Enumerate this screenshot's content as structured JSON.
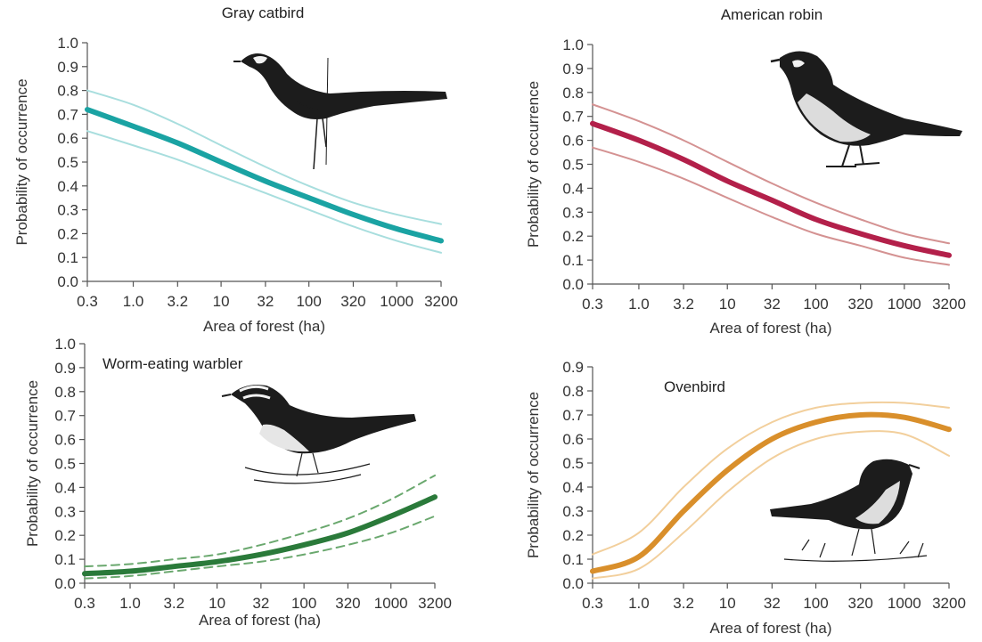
{
  "chart_data": [
    {
      "type": "line",
      "title": "Gray catbird",
      "xlabel": "Area of forest (ha)",
      "ylabel": "Probability of occurrence",
      "x_scale": "log",
      "x_ticks": [
        "0.3",
        "1.0",
        "3.2",
        "10",
        "32",
        "100",
        "320",
        "1000",
        "3200"
      ],
      "y_ticks": [
        "0.0",
        "0.1",
        "0.2",
        "0.3",
        "0.4",
        "0.5",
        "0.6",
        "0.7",
        "0.8",
        "0.9",
        "1.0"
      ],
      "ylim": [
        0,
        1.0
      ],
      "xlim": [
        0.3,
        3200
      ],
      "x": [
        0.3,
        1.0,
        3.2,
        10,
        32,
        100,
        320,
        1000,
        3200
      ],
      "mean_color": "#1aa3a3",
      "band_color": "#a8dede",
      "band_style": "solid",
      "illustration": "gray-catbird-drawing",
      "series": [
        {
          "values": [
            0.72,
            0.65,
            0.58,
            0.5,
            0.42,
            0.35,
            0.28,
            0.22,
            0.17
          ]
        },
        {
          "values": [
            0.8,
            0.74,
            0.66,
            0.57,
            0.48,
            0.4,
            0.33,
            0.28,
            0.24
          ]
        },
        {
          "values": [
            0.63,
            0.57,
            0.51,
            0.44,
            0.37,
            0.3,
            0.23,
            0.17,
            0.12
          ]
        }
      ]
    },
    {
      "type": "line",
      "title": "American robin",
      "xlabel": "Area of forest (ha)",
      "ylabel": "Probability of occurrence",
      "x_scale": "log",
      "x_ticks": [
        "0.3",
        "1.0",
        "3.2",
        "10",
        "32",
        "100",
        "320",
        "1000",
        "3200"
      ],
      "y_ticks": [
        "0.0",
        "0.1",
        "0.2",
        "0.3",
        "0.4",
        "0.5",
        "0.6",
        "0.7",
        "0.8",
        "0.9",
        "1.0"
      ],
      "ylim": [
        0,
        1.0
      ],
      "xlim": [
        0.3,
        3200
      ],
      "x": [
        0.3,
        1.0,
        3.2,
        10,
        32,
        100,
        320,
        1000,
        3200
      ],
      "mean_color": "#b3204a",
      "band_color": "#d49292",
      "band_style": "solid",
      "illustration": "american-robin-drawing",
      "series": [
        {
          "values": [
            0.67,
            0.6,
            0.52,
            0.43,
            0.35,
            0.27,
            0.21,
            0.16,
            0.12
          ]
        },
        {
          "values": [
            0.75,
            0.68,
            0.6,
            0.51,
            0.42,
            0.34,
            0.27,
            0.21,
            0.17
          ]
        },
        {
          "values": [
            0.57,
            0.51,
            0.44,
            0.36,
            0.28,
            0.21,
            0.16,
            0.11,
            0.08
          ]
        }
      ]
    },
    {
      "type": "line",
      "title": "Worm-eating warbler",
      "xlabel": "Area of forest (ha)",
      "ylabel": "Probability of occurrence",
      "x_scale": "log",
      "x_ticks": [
        "0.3",
        "1.0",
        "3.2",
        "10",
        "32",
        "100",
        "320",
        "1000",
        "3200"
      ],
      "y_ticks": [
        "0.0",
        "0.1",
        "0.2",
        "0.3",
        "0.4",
        "0.5",
        "0.6",
        "0.7",
        "0.8",
        "0.9",
        "1.0"
      ],
      "ylim": [
        0,
        1.0
      ],
      "xlim": [
        0.3,
        3200
      ],
      "x": [
        0.3,
        1.0,
        3.2,
        10,
        32,
        100,
        320,
        1000,
        3200
      ],
      "mean_color": "#2a7a3a",
      "band_color": "#6aa86e",
      "band_style": "dashed",
      "illustration": "worm-eating-warbler-drawing",
      "series": [
        {
          "values": [
            0.04,
            0.05,
            0.07,
            0.09,
            0.12,
            0.16,
            0.21,
            0.28,
            0.36
          ]
        },
        {
          "values": [
            0.07,
            0.08,
            0.1,
            0.12,
            0.16,
            0.21,
            0.27,
            0.35,
            0.45
          ]
        },
        {
          "values": [
            0.02,
            0.03,
            0.05,
            0.07,
            0.09,
            0.12,
            0.16,
            0.21,
            0.28
          ]
        }
      ]
    },
    {
      "type": "line",
      "title": "Ovenbird",
      "xlabel": "Area of forest (ha)",
      "ylabel": "Probability of occurrence",
      "x_scale": "log",
      "x_ticks": [
        "0.3",
        "1.0",
        "3.2",
        "10",
        "32",
        "100",
        "320",
        "1000",
        "3200"
      ],
      "y_ticks": [
        "0.0",
        "0.1",
        "0.2",
        "0.3",
        "0.4",
        "0.5",
        "0.6",
        "0.7",
        "0.8",
        "0.9"
      ],
      "ylim": [
        0,
        0.9
      ],
      "xlim": [
        0.3,
        3200
      ],
      "x": [
        0.3,
        1.0,
        3.2,
        10,
        32,
        100,
        320,
        1000,
        3200
      ],
      "mean_color": "#d98f2b",
      "band_color": "#f2cf9c",
      "band_style": "solid",
      "illustration": "ovenbird-drawing",
      "series": [
        {
          "values": [
            0.05,
            0.11,
            0.3,
            0.47,
            0.6,
            0.67,
            0.7,
            0.69,
            0.64
          ]
        },
        {
          "values": [
            0.12,
            0.21,
            0.4,
            0.56,
            0.67,
            0.73,
            0.75,
            0.75,
            0.73
          ]
        },
        {
          "values": [
            0.02,
            0.06,
            0.21,
            0.38,
            0.52,
            0.6,
            0.63,
            0.62,
            0.53
          ]
        }
      ]
    }
  ]
}
